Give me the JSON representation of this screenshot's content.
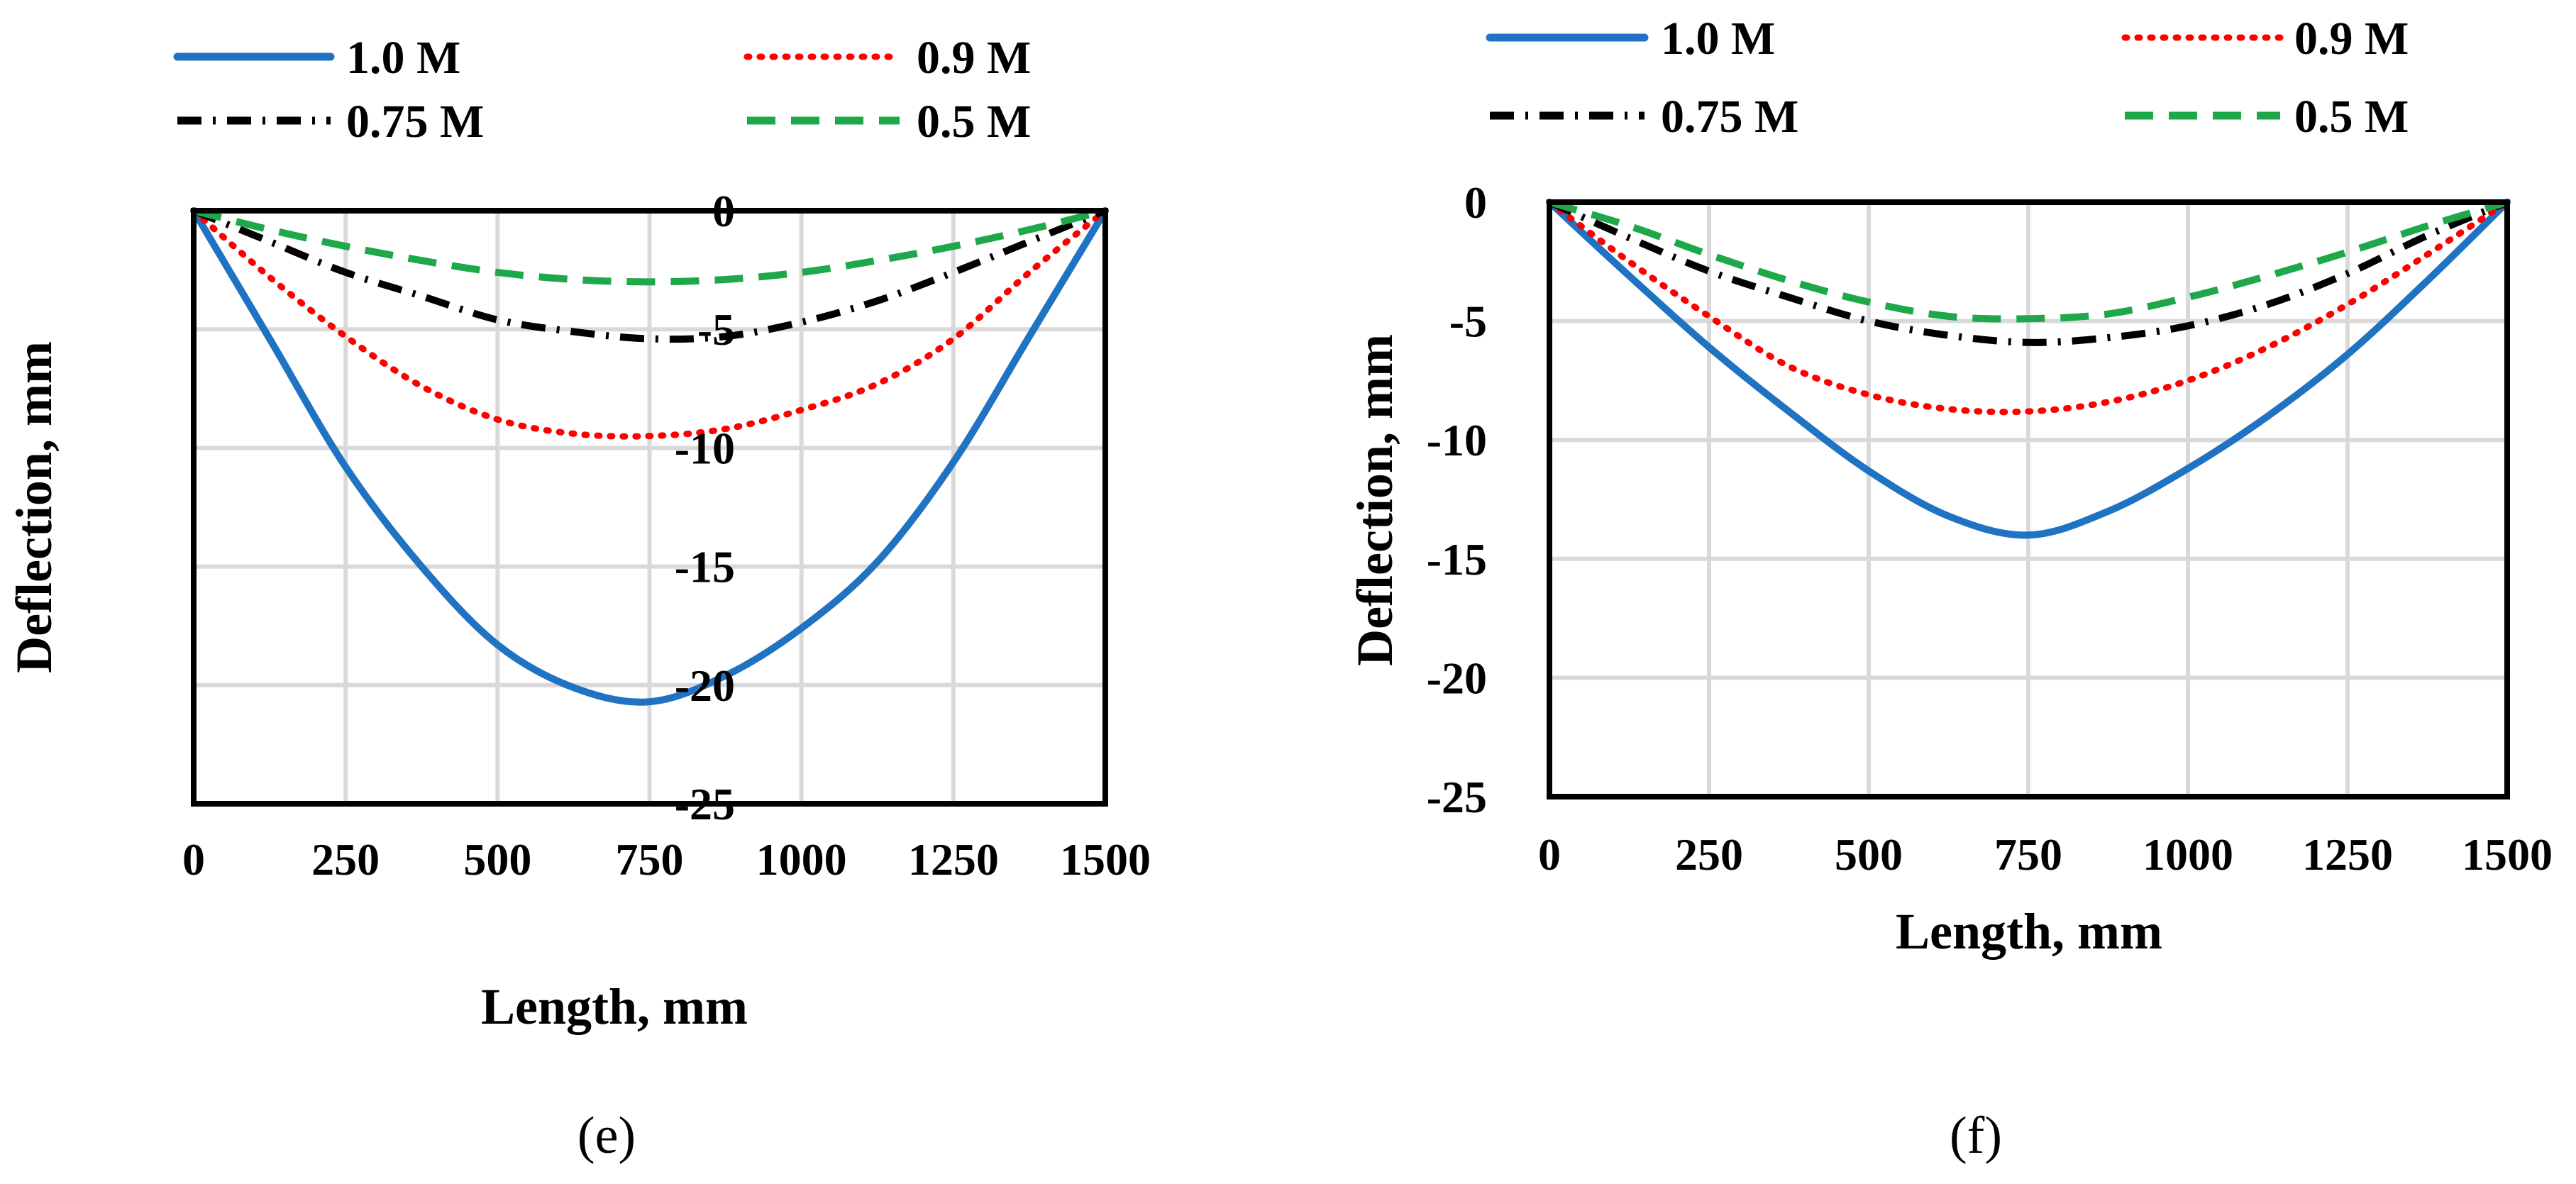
{
  "chart_data": [
    {
      "type": "line",
      "caption": "(e)",
      "xlabel": "Length, mm",
      "ylabel": "Deflection, mm",
      "xlim": [
        0,
        1500
      ],
      "ylim": [
        -25,
        0
      ],
      "xticks": [
        0,
        250,
        500,
        750,
        1000,
        1250,
        1500
      ],
      "yticks": [
        0,
        -5,
        -10,
        -15,
        -20,
        -25
      ],
      "grid": true,
      "legend_position": "top",
      "x": [
        0,
        125,
        250,
        375,
        500,
        625,
        750,
        875,
        1000,
        1125,
        1250,
        1375,
        1500
      ],
      "series": [
        {
          "name": "1.0 M",
          "color": "#1f73c2",
          "style": "solid",
          "values": [
            0,
            -5.4,
            -10.8,
            -15.0,
            -18.3,
            -20.1,
            -20.7,
            -19.6,
            -17.6,
            -14.8,
            -10.6,
            -5.3,
            0
          ]
        },
        {
          "name": "0.9 M",
          "color": "#ff0000",
          "style": "dotted",
          "values": [
            0,
            -2.8,
            -5.3,
            -7.4,
            -8.8,
            -9.4,
            -9.5,
            -9.2,
            -8.4,
            -7.3,
            -5.4,
            -2.6,
            0
          ]
        },
        {
          "name": "0.75 M",
          "color": "#000000",
          "style": "dashdot",
          "values": [
            0,
            -1.3,
            -2.6,
            -3.6,
            -4.6,
            -5.1,
            -5.4,
            -5.3,
            -4.7,
            -3.8,
            -2.6,
            -1.3,
            0
          ]
        },
        {
          "name": "0.5 M",
          "color": "#1fa84a",
          "style": "dashed",
          "values": [
            0,
            -0.8,
            -1.5,
            -2.1,
            -2.6,
            -2.9,
            -3.0,
            -2.9,
            -2.6,
            -2.1,
            -1.5,
            -0.8,
            0
          ]
        }
      ]
    },
    {
      "type": "line",
      "caption": "(f)",
      "xlabel": "Length, mm",
      "ylabel": "Deflection, mm",
      "xlim": [
        0,
        1500
      ],
      "ylim": [
        -25,
        0
      ],
      "xticks": [
        0,
        250,
        500,
        750,
        1000,
        1250,
        1500
      ],
      "yticks": [
        0,
        -5,
        -10,
        -15,
        -20,
        -25
      ],
      "grid": true,
      "legend_position": "top",
      "x": [
        0,
        125,
        250,
        375,
        500,
        625,
        750,
        875,
        1000,
        1125,
        1250,
        1375,
        1500
      ],
      "series": [
        {
          "name": "1.0 M",
          "color": "#1f73c2",
          "style": "solid",
          "values": [
            0,
            -3.1,
            -6.1,
            -8.8,
            -11.3,
            -13.2,
            -14.0,
            -13.0,
            -11.2,
            -9.0,
            -6.4,
            -3.3,
            0
          ]
        },
        {
          "name": "0.9 M",
          "color": "#ff0000",
          "style": "dotted",
          "values": [
            0,
            -2.5,
            -4.8,
            -6.9,
            -8.1,
            -8.7,
            -8.8,
            -8.4,
            -7.5,
            -6.1,
            -4.3,
            -2.2,
            0
          ]
        },
        {
          "name": "0.75 M",
          "color": "#000000",
          "style": "dashdot",
          "values": [
            0,
            -1.5,
            -2.9,
            -4.0,
            -5.0,
            -5.6,
            -5.9,
            -5.7,
            -5.2,
            -4.3,
            -3.0,
            -1.4,
            0
          ]
        },
        {
          "name": "0.5 M",
          "color": "#1fa84a",
          "style": "dashed",
          "values": [
            0,
            -1.0,
            -2.2,
            -3.3,
            -4.2,
            -4.8,
            -4.9,
            -4.7,
            -4.0,
            -3.1,
            -2.1,
            -1.0,
            0
          ]
        }
      ]
    }
  ]
}
